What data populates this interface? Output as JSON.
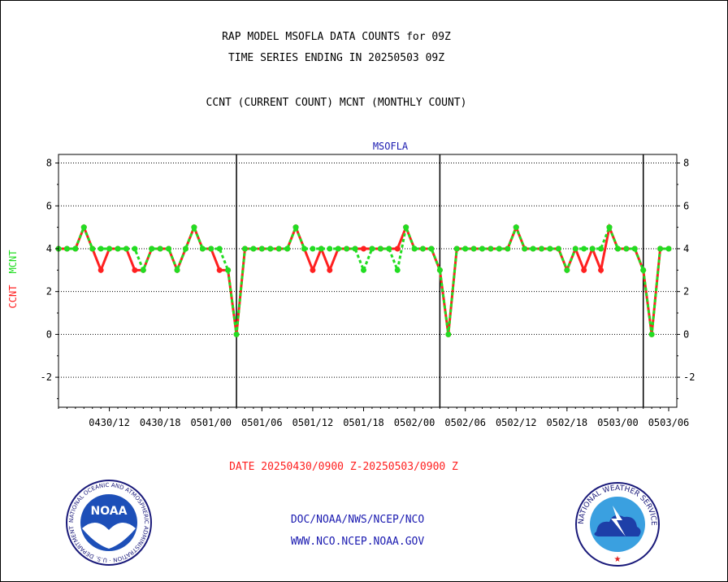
{
  "header": {
    "line1": "RAP MODEL MSOFLA DATA COUNTS for 09Z",
    "line2": "TIME SERIES ENDING IN 20250503 09Z",
    "line3": "CCNT (CURRENT COUNT) MCNT (MONTHLY COUNT)"
  },
  "chart_data": {
    "type": "line",
    "title": "MSOFLA",
    "ylabel_left_1": "CCNT",
    "ylabel_left_2": "MCNT",
    "xlabel": "DATE 20250430/0900 Z-20250503/0900 Z",
    "ylim": [
      -3.4,
      8.4
    ],
    "yticks": [
      -2,
      0,
      2,
      4,
      6,
      8
    ],
    "x_unit": "hours from 2025-04-30 06Z",
    "xlim": [
      0,
      72
    ],
    "xticks": [
      {
        "x": 6,
        "label": "0430/12"
      },
      {
        "x": 12,
        "label": "0430/18"
      },
      {
        "x": 18,
        "label": "0501/00"
      },
      {
        "x": 24,
        "label": "0501/06"
      },
      {
        "x": 30,
        "label": "0501/12"
      },
      {
        "x": 36,
        "label": "0501/18"
      },
      {
        "x": 42,
        "label": "0502/00"
      },
      {
        "x": 48,
        "label": "0502/06"
      },
      {
        "x": 54,
        "label": "0502/12"
      },
      {
        "x": 60,
        "label": "0502/18"
      },
      {
        "x": 66,
        "label": "0503/00"
      },
      {
        "x": 72,
        "label": "0503/06"
      }
    ],
    "day_boundaries": [
      21,
      45,
      69
    ],
    "grid": true,
    "series": [
      {
        "name": "CCNT",
        "color": "#ff2020",
        "style": "solid",
        "x": [
          0,
          1,
          2,
          3,
          4,
          5,
          6,
          7,
          8,
          9,
          10,
          11,
          12,
          13,
          14,
          15,
          16,
          17,
          18,
          19,
          20,
          21,
          22,
          23,
          24,
          25,
          26,
          27,
          28,
          29,
          30,
          31,
          32,
          33,
          34,
          35,
          36,
          37,
          38,
          39,
          40,
          41,
          42,
          43,
          44,
          45,
          46,
          47,
          48,
          49,
          50,
          51,
          52,
          53,
          54,
          55,
          56,
          57,
          58,
          59,
          60,
          61,
          62,
          63,
          64,
          65,
          66,
          67,
          68,
          69,
          70,
          71,
          72
        ],
        "values": [
          4,
          4,
          4,
          5,
          4,
          3,
          4,
          4,
          4,
          3,
          3,
          4,
          4,
          4,
          3,
          4,
          5,
          4,
          4,
          3,
          3,
          0,
          4,
          4,
          4,
          4,
          4,
          4,
          5,
          4,
          3,
          4,
          3,
          4,
          4,
          4,
          4,
          4,
          4,
          4,
          4,
          5,
          4,
          4,
          4,
          3,
          0,
          4,
          4,
          4,
          4,
          4,
          4,
          4,
          5,
          4,
          4,
          4,
          4,
          4,
          3,
          4,
          3,
          4,
          3,
          5,
          4,
          4,
          4,
          3,
          0,
          4,
          4
        ]
      },
      {
        "name": "MCNT",
        "color": "#22dd22",
        "style": "dashed",
        "x": [
          0,
          1,
          2,
          3,
          4,
          5,
          6,
          7,
          8,
          9,
          10,
          11,
          12,
          13,
          14,
          15,
          16,
          17,
          18,
          19,
          20,
          21,
          22,
          23,
          24,
          25,
          26,
          27,
          28,
          29,
          30,
          31,
          32,
          33,
          34,
          35,
          36,
          37,
          38,
          39,
          40,
          41,
          42,
          43,
          44,
          45,
          46,
          47,
          48,
          49,
          50,
          51,
          52,
          53,
          54,
          55,
          56,
          57,
          58,
          59,
          60,
          61,
          62,
          63,
          64,
          65,
          66,
          67,
          68,
          69,
          70,
          71,
          72
        ],
        "values": [
          4,
          4,
          4,
          5,
          4,
          4,
          4,
          4,
          4,
          4,
          3,
          4,
          4,
          4,
          3,
          4,
          5,
          4,
          4,
          4,
          3,
          0,
          4,
          4,
          4,
          4,
          4,
          4,
          5,
          4,
          4,
          4,
          4,
          4,
          4,
          4,
          3,
          4,
          4,
          4,
          3,
          5,
          4,
          4,
          4,
          3,
          0,
          4,
          4,
          4,
          4,
          4,
          4,
          4,
          5,
          4,
          4,
          4,
          4,
          4,
          3,
          4,
          4,
          4,
          4,
          5,
          4,
          4,
          4,
          3,
          0,
          4,
          4
        ]
      }
    ]
  },
  "footer": {
    "line1": "DOC/NOAA/NWS/NCEP/NCO",
    "line2": "WWW.NCO.NCEP.NOAA.GOV",
    "noaa_logo_text": "NOAA",
    "noaa_ring_text": "NATIONAL OCEANIC AND ATMOSPHERIC ADMINISTRATION · U.S. DEPARTMENT OF COMMERCE",
    "nws_ring_text": "NATIONAL WEATHER SERVICE"
  },
  "colors": {
    "ccnt": "#ff2020",
    "mcnt": "#22dd22",
    "blue_text": "#1a1ab0",
    "date_text": "#ff2020"
  }
}
